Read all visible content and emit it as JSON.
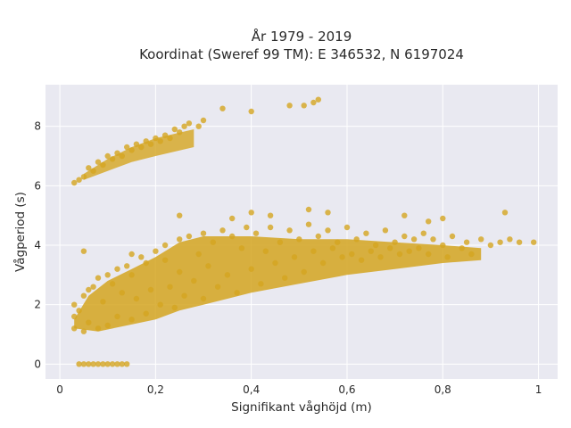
{
  "chart_data": {
    "type": "scatter",
    "title": "År 1979 - 2019",
    "subtitle": "Koordinat (Sweref 99 TM): E 346532, N 6197024",
    "xlabel": "Signifikant våghöjd (m)",
    "ylabel": "Vågperiod (s)",
    "xlim": [
      -0.03,
      1.04
    ],
    "ylim": [
      -0.5,
      9.4
    ],
    "x_ticks": [
      0,
      0.2,
      0.4,
      0.6,
      0.8,
      1
    ],
    "x_tick_labels": [
      "0",
      "0,2",
      "0,4",
      "0,6",
      "0,8",
      "1"
    ],
    "y_ticks": [
      0,
      2,
      4,
      6,
      8
    ],
    "y_tick_labels": [
      "0",
      "2",
      "4",
      "6",
      "8"
    ],
    "grid": true,
    "marker_color": "#d4a520",
    "background_color": "#e9e9f1",
    "clusters": [
      {
        "name": "main",
        "x_range": [
          0.02,
          1.0
        ],
        "description": "dense swell cloud"
      },
      {
        "name": "upper",
        "x_range": [
          0.03,
          0.54
        ],
        "y_range": [
          6.0,
          9.0
        ]
      },
      {
        "name": "zero",
        "x_range": [
          0.04,
          0.14
        ],
        "y": 0
      }
    ],
    "points": [
      [
        0.03,
        1.2
      ],
      [
        0.03,
        1.6
      ],
      [
        0.03,
        2.0
      ],
      [
        0.04,
        1.8
      ],
      [
        0.05,
        2.3
      ],
      [
        0.05,
        1.1
      ],
      [
        0.06,
        2.5
      ],
      [
        0.06,
        1.4
      ],
      [
        0.07,
        2.6
      ],
      [
        0.08,
        1.2
      ],
      [
        0.08,
        2.9
      ],
      [
        0.09,
        2.1
      ],
      [
        0.1,
        3.0
      ],
      [
        0.1,
        1.3
      ],
      [
        0.11,
        2.7
      ],
      [
        0.12,
        1.6
      ],
      [
        0.12,
        3.2
      ],
      [
        0.13,
        2.4
      ],
      [
        0.14,
        3.3
      ],
      [
        0.15,
        1.5
      ],
      [
        0.15,
        3.0
      ],
      [
        0.16,
        2.2
      ],
      [
        0.17,
        3.6
      ],
      [
        0.18,
        1.7
      ],
      [
        0.18,
        3.4
      ],
      [
        0.19,
        2.5
      ],
      [
        0.2,
        3.8
      ],
      [
        0.21,
        2.0
      ],
      [
        0.22,
        3.5
      ],
      [
        0.22,
        4.0
      ],
      [
        0.23,
        2.6
      ],
      [
        0.24,
        1.9
      ],
      [
        0.25,
        4.2
      ],
      [
        0.25,
        3.1
      ],
      [
        0.26,
        2.3
      ],
      [
        0.27,
        4.3
      ],
      [
        0.28,
        2.8
      ],
      [
        0.29,
        3.7
      ],
      [
        0.3,
        4.4
      ],
      [
        0.3,
        2.2
      ],
      [
        0.31,
        3.3
      ],
      [
        0.32,
        4.1
      ],
      [
        0.33,
        2.6
      ],
      [
        0.34,
        4.5
      ],
      [
        0.35,
        3.0
      ],
      [
        0.36,
        4.3
      ],
      [
        0.37,
        2.4
      ],
      [
        0.38,
        3.9
      ],
      [
        0.39,
        4.6
      ],
      [
        0.4,
        3.2
      ],
      [
        0.41,
        4.4
      ],
      [
        0.42,
        2.7
      ],
      [
        0.43,
        3.8
      ],
      [
        0.44,
        4.6
      ],
      [
        0.45,
        3.4
      ],
      [
        0.46,
        4.1
      ],
      [
        0.47,
        2.9
      ],
      [
        0.48,
        4.5
      ],
      [
        0.49,
        3.6
      ],
      [
        0.5,
        4.2
      ],
      [
        0.51,
        3.1
      ],
      [
        0.52,
        4.7
      ],
      [
        0.53,
        3.8
      ],
      [
        0.54,
        4.3
      ],
      [
        0.55,
        3.4
      ],
      [
        0.56,
        4.5
      ],
      [
        0.57,
        3.9
      ],
      [
        0.58,
        4.1
      ],
      [
        0.59,
        3.6
      ],
      [
        0.6,
        4.6
      ],
      [
        0.61,
        3.7
      ],
      [
        0.62,
        4.2
      ],
      [
        0.63,
        3.5
      ],
      [
        0.64,
        4.4
      ],
      [
        0.65,
        3.8
      ],
      [
        0.66,
        4.0
      ],
      [
        0.67,
        3.6
      ],
      [
        0.68,
        4.5
      ],
      [
        0.69,
        3.9
      ],
      [
        0.7,
        4.1
      ],
      [
        0.71,
        3.7
      ],
      [
        0.72,
        4.3
      ],
      [
        0.73,
        3.8
      ],
      [
        0.74,
        4.2
      ],
      [
        0.75,
        3.9
      ],
      [
        0.76,
        4.4
      ],
      [
        0.77,
        3.7
      ],
      [
        0.78,
        4.2
      ],
      [
        0.8,
        4.0
      ],
      [
        0.81,
        3.6
      ],
      [
        0.82,
        4.3
      ],
      [
        0.84,
        3.9
      ],
      [
        0.85,
        4.1
      ],
      [
        0.86,
        3.7
      ],
      [
        0.88,
        4.2
      ],
      [
        0.9,
        4.0
      ],
      [
        0.92,
        4.1
      ],
      [
        0.93,
        5.1
      ],
      [
        0.94,
        4.2
      ],
      [
        0.96,
        4.1
      ],
      [
        0.99,
        4.1
      ],
      [
        0.8,
        4.9
      ],
      [
        0.72,
        5.0
      ],
      [
        0.77,
        4.8
      ],
      [
        0.56,
        5.1
      ],
      [
        0.52,
        5.2
      ],
      [
        0.44,
        5.0
      ],
      [
        0.4,
        5.1
      ],
      [
        0.36,
        4.9
      ],
      [
        0.15,
        3.7
      ],
      [
        0.05,
        3.8
      ],
      [
        0.25,
        5.0
      ],
      [
        0.03,
        6.1
      ],
      [
        0.04,
        6.2
      ],
      [
        0.05,
        6.3
      ],
      [
        0.06,
        6.6
      ],
      [
        0.07,
        6.5
      ],
      [
        0.08,
        6.8
      ],
      [
        0.09,
        6.7
      ],
      [
        0.1,
        7.0
      ],
      [
        0.11,
        6.9
      ],
      [
        0.12,
        7.1
      ],
      [
        0.13,
        7.0
      ],
      [
        0.14,
        7.3
      ],
      [
        0.15,
        7.2
      ],
      [
        0.16,
        7.4
      ],
      [
        0.17,
        7.3
      ],
      [
        0.18,
        7.5
      ],
      [
        0.19,
        7.4
      ],
      [
        0.2,
        7.6
      ],
      [
        0.21,
        7.5
      ],
      [
        0.22,
        7.7
      ],
      [
        0.23,
        7.6
      ],
      [
        0.24,
        7.9
      ],
      [
        0.25,
        7.8
      ],
      [
        0.26,
        8.0
      ],
      [
        0.27,
        8.1
      ],
      [
        0.29,
        8.0
      ],
      [
        0.3,
        8.2
      ],
      [
        0.34,
        8.6
      ],
      [
        0.4,
        8.5
      ],
      [
        0.48,
        8.7
      ],
      [
        0.51,
        8.7
      ],
      [
        0.53,
        8.8
      ],
      [
        0.54,
        8.9
      ],
      [
        0.04,
        0
      ],
      [
        0.05,
        0
      ],
      [
        0.06,
        0
      ],
      [
        0.07,
        0
      ],
      [
        0.08,
        0
      ],
      [
        0.09,
        0
      ],
      [
        0.1,
        0
      ],
      [
        0.11,
        0
      ],
      [
        0.12,
        0
      ],
      [
        0.13,
        0
      ],
      [
        0.14,
        0
      ]
    ]
  }
}
